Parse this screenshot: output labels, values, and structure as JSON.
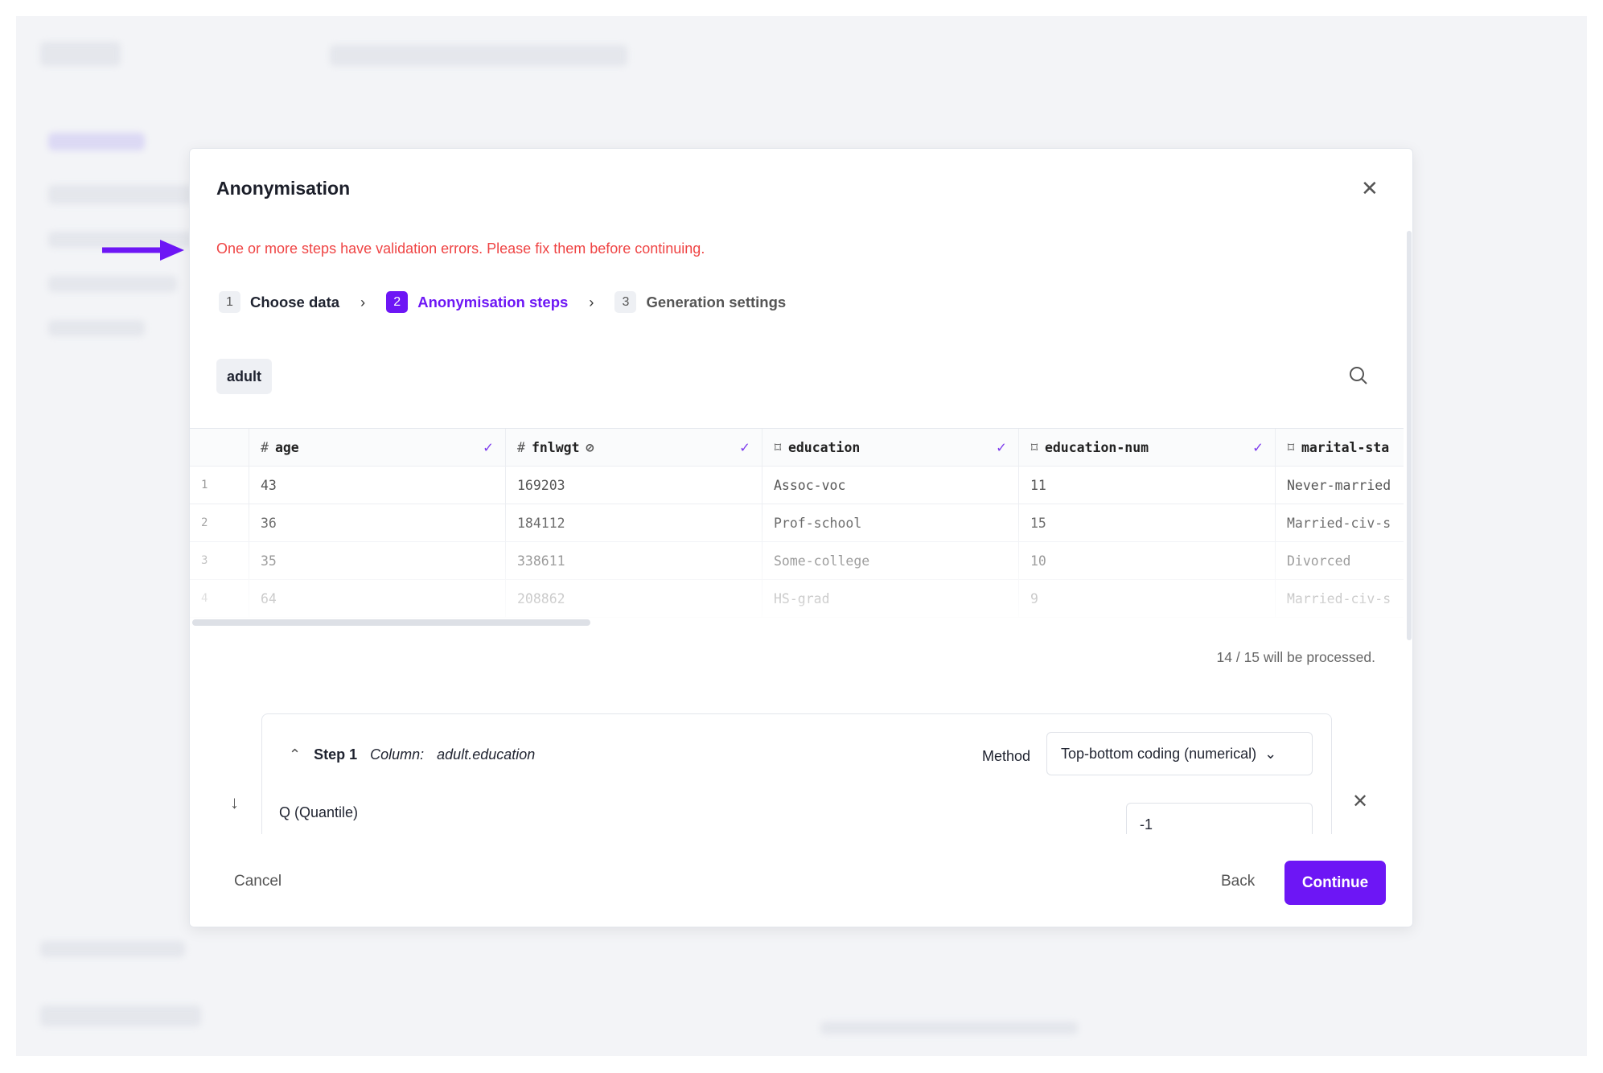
{
  "modal": {
    "title": "Anonymisation",
    "error": "One or more steps have validation errors. Please fix them before continuing.",
    "steps": [
      {
        "n": "1",
        "label": "Choose data"
      },
      {
        "n": "2",
        "label": "Anonymisation steps"
      },
      {
        "n": "3",
        "label": "Generation settings"
      }
    ],
    "dataset_chip": "adult",
    "table": {
      "columns": [
        {
          "name": "age",
          "type": "#",
          "checked": true
        },
        {
          "name": "fnlwgt",
          "type": "#",
          "checked": true
        },
        {
          "name": "education",
          "type": "bookmark",
          "checked": true
        },
        {
          "name": "education-num",
          "type": "bookmark",
          "checked": true
        },
        {
          "name": "marital-sta",
          "type": "bookmark"
        }
      ],
      "rows": [
        [
          "1",
          "43",
          "169203",
          "Assoc-voc",
          "11",
          "Never-married"
        ],
        [
          "2",
          "36",
          "184112",
          "Prof-school",
          "15",
          "Married-civ-s"
        ],
        [
          "3",
          "35",
          "338611",
          "Some-college",
          "10",
          "Divorced"
        ],
        [
          "4",
          "64",
          "208862",
          "HS-grad",
          "9",
          "Married-civ-s"
        ]
      ]
    },
    "processed": "14 / 15 will be processed.",
    "step": {
      "label": "Step 1",
      "column_label": "Column:",
      "column_value": "adult.education",
      "method_label": "Method",
      "method_value": "Top-bottom coding (numerical)",
      "param_label": "Q (Quantile)",
      "param_value": "-1"
    },
    "footer": {
      "cancel": "Cancel",
      "back": "Back",
      "continue": "Continue"
    }
  },
  "colors": {
    "accent": "#6d16f5",
    "error": "#ef4444"
  }
}
